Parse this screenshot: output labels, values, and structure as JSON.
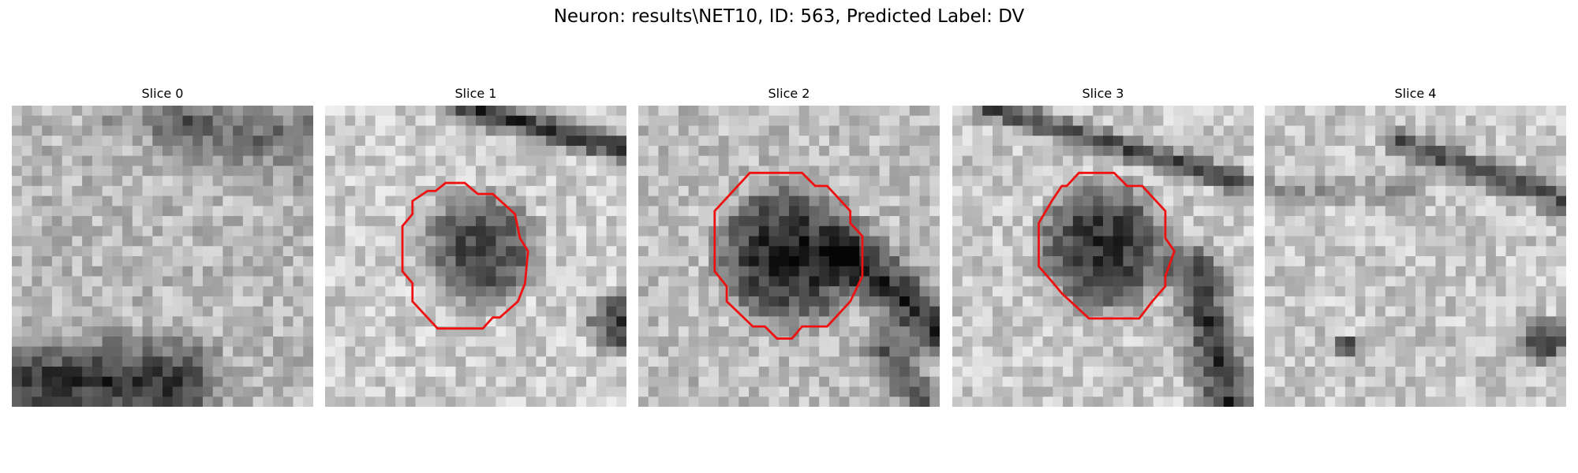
{
  "title": "Neuron: results\\NET10, ID: 563, Predicted Label: DV",
  "panels": [
    {
      "title": "Slice 0"
    },
    {
      "title": "Slice 1"
    },
    {
      "title": "Slice 2"
    },
    {
      "title": "Slice 3"
    },
    {
      "title": "Slice 4"
    }
  ]
}
